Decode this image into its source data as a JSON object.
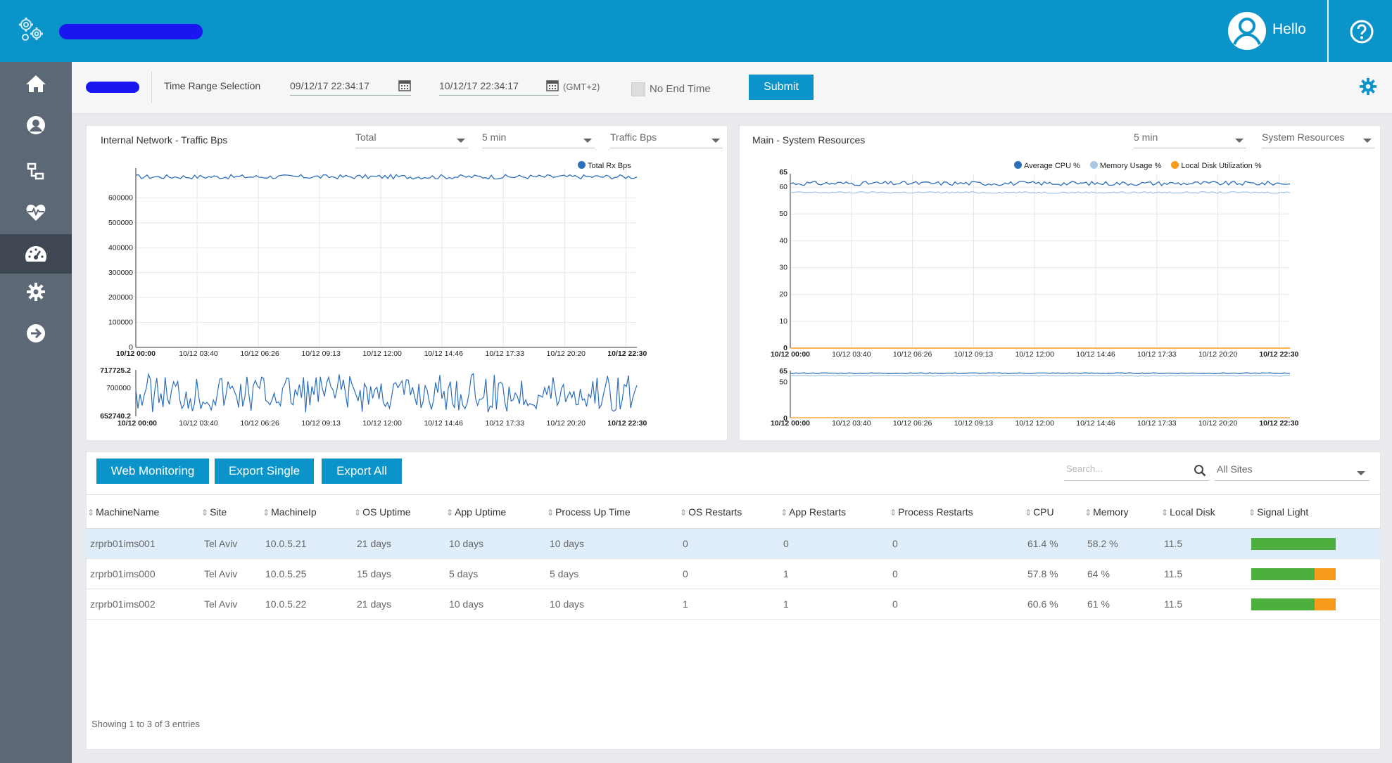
{
  "header": {
    "greeting": "Hello"
  },
  "sidebar": {
    "items": [
      {
        "name": "home"
      },
      {
        "name": "user"
      },
      {
        "name": "network"
      },
      {
        "name": "health"
      },
      {
        "name": "dashboard",
        "active": true
      },
      {
        "name": "settings"
      },
      {
        "name": "logout"
      }
    ]
  },
  "filter": {
    "time_range_label": "Time Range Selection",
    "start": "09/12/17 22:34:17",
    "end": "10/12/17 22:34:17",
    "timezone": "(GMT+2)",
    "no_end_time": "No End Time",
    "submit": "Submit"
  },
  "left_panel": {
    "title": "Internal Network - Traffic Bps",
    "dd1": "Total",
    "dd2": "5 min",
    "dd3": "Traffic Bps",
    "legend": [
      "Total Rx Bps"
    ]
  },
  "right_panel": {
    "title": "Main - System Resources",
    "dd1": "5 min",
    "dd2": "System Resources",
    "legend": [
      "Average CPU %",
      "Memory Usage %",
      "Local Disk Utilization %"
    ]
  },
  "chart_data": [
    {
      "type": "line",
      "title": "Internal Network - Traffic Bps",
      "x": [
        "10/12 00:00",
        "10/12 03:40",
        "10/12 06:26",
        "10/12 09:13",
        "10/12 12:00",
        "10/12 14:46",
        "10/12 17:33",
        "10/12 20:20",
        "10/12 22:30"
      ],
      "yticks": [
        "0",
        "100000",
        "200000",
        "300000",
        "400000",
        "500000",
        "600000"
      ],
      "ylim": [
        0,
        720000
      ],
      "navigator_range": [
        "652740.2",
        "717725.2"
      ],
      "navigator_tick": "700000",
      "series": [
        {
          "name": "Total Rx Bps",
          "color": "#2c6fbb",
          "approx_value": 685000
        }
      ]
    },
    {
      "type": "line",
      "title": "Main - System Resources",
      "x": [
        "10/12 00:00",
        "10/12 03:40",
        "10/12 06:26",
        "10/12 09:13",
        "10/12 12:00",
        "10/12 14:46",
        "10/12 17:33",
        "10/12 20:20",
        "10/12 22:30"
      ],
      "yticks": [
        "0",
        "10",
        "20",
        "30",
        "40",
        "50",
        "60",
        "65"
      ],
      "ylim": [
        0,
        65
      ],
      "navigator_ticks": [
        "0",
        "50",
        "65"
      ],
      "series": [
        {
          "name": "Average CPU %",
          "color": "#2c6fbb",
          "approx_value": 61.4
        },
        {
          "name": "Memory Usage %",
          "color": "#a7c7e7",
          "approx_value": 58
        },
        {
          "name": "Local Disk Utilization %",
          "color": "#f79b1c",
          "approx_value": 0
        }
      ]
    }
  ],
  "toolbar": {
    "web_monitoring": "Web Monitoring",
    "export_single": "Export Single",
    "export_all": "Export All",
    "search_placeholder": "Search...",
    "site_filter": "All Sites"
  },
  "table": {
    "columns": [
      "MachineName",
      "Site",
      "MachineIp",
      "OS Uptime",
      "App Uptime",
      "Process Up Time",
      "OS Restarts",
      "App Restarts",
      "Process Restarts",
      "CPU",
      "Memory",
      "Local Disk",
      "Signal Light"
    ],
    "rows": [
      {
        "cells": [
          "zrprb01ims001",
          "Tel Aviv",
          "10.0.5.21",
          "21 days",
          "10 days",
          "10 days",
          "0",
          "0",
          "0",
          "61.4 %",
          "58.2 %",
          "11.5"
        ],
        "signal": [
          1.0,
          0.0
        ],
        "selected": true
      },
      {
        "cells": [
          "zrprb01ims000",
          "Tel Aviv",
          "10.0.5.25",
          "15 days",
          "5 days",
          "5 days",
          "0",
          "1",
          "0",
          "57.8 %",
          "64 %",
          "11.5"
        ],
        "signal": [
          0.75,
          0.25
        ],
        "selected": false
      },
      {
        "cells": [
          "zrprb01ims002",
          "Tel Aviv",
          "10.0.5.22",
          "21 days",
          "10 days",
          "10 days",
          "1",
          "1",
          "0",
          "60.6 %",
          "61 %",
          "11.5"
        ],
        "signal": [
          0.75,
          0.25
        ],
        "selected": false
      }
    ],
    "footer": "Showing 1 to 3 of 3 entries"
  }
}
